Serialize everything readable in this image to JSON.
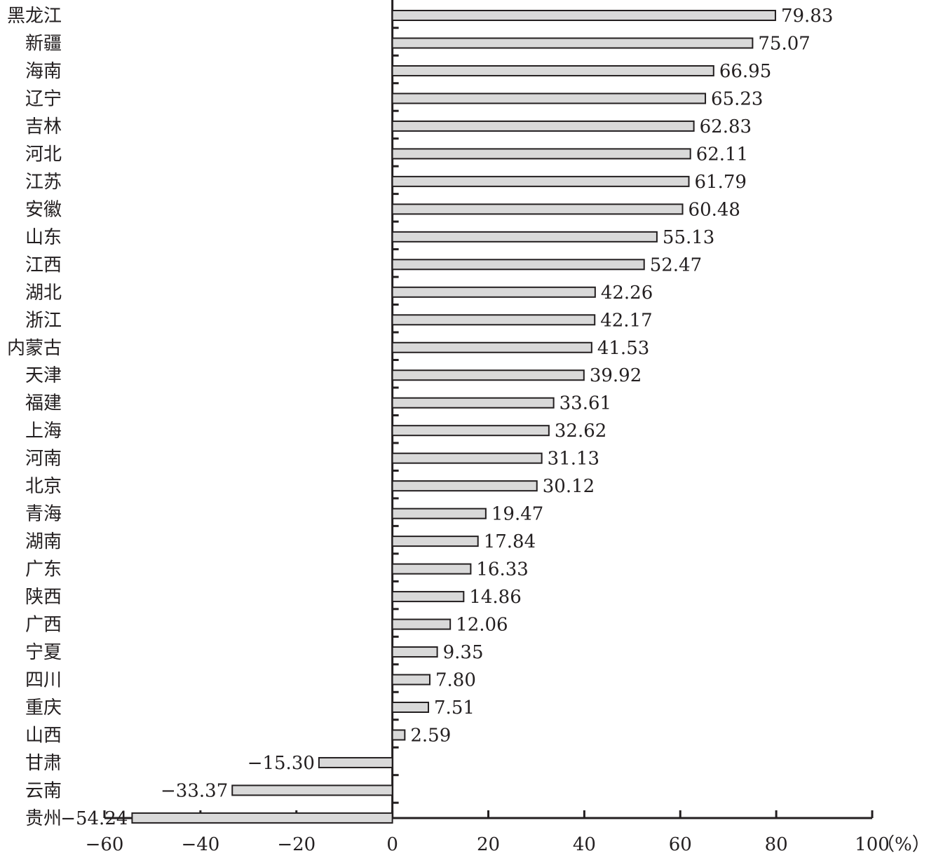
{
  "chart_data": {
    "type": "bar",
    "orientation": "horizontal",
    "title": "",
    "xlabel": "",
    "ylabel": "",
    "unit": "（%）",
    "xlim": [
      -60,
      100
    ],
    "xticks": [
      -60,
      -40,
      -20,
      0,
      20,
      40,
      60,
      80,
      100
    ],
    "xtick_labels": [
      "−60",
      "−40",
      "−20",
      "0",
      "20",
      "40",
      "60",
      "80",
      "100"
    ],
    "categories": [
      "黑龙江",
      "新疆",
      "海南",
      "辽宁",
      "吉林",
      "河北",
      "江苏",
      "安徽",
      "山东",
      "江西",
      "湖北",
      "浙江",
      "内蒙古",
      "天津",
      "福建",
      "上海",
      "河南",
      "北京",
      "青海",
      "湖南",
      "广东",
      "陕西",
      "广西",
      "宁夏",
      "四川",
      "重庆",
      "山西",
      "甘肃",
      "云南",
      "贵州"
    ],
    "values": [
      79.83,
      75.07,
      66.95,
      65.23,
      62.83,
      62.11,
      61.79,
      60.48,
      55.13,
      52.47,
      42.26,
      42.17,
      41.53,
      39.92,
      33.61,
      32.62,
      31.13,
      30.12,
      19.47,
      17.84,
      16.33,
      14.86,
      12.06,
      9.35,
      7.8,
      7.51,
      2.59,
      -15.3,
      -33.37,
      -54.24
    ],
    "value_labels": [
      "79.83",
      "75.07",
      "66.95",
      "65.23",
      "62.83",
      "62.11",
      "61.79",
      "60.48",
      "55.13",
      "52.47",
      "42.26",
      "42.17",
      "41.53",
      "39.92",
      "33.61",
      "32.62",
      "31.13",
      "30.12",
      "19.47",
      "17.84",
      "16.33",
      "14.86",
      "12.06",
      "9.35",
      "7.80",
      "7.51",
      "2.59",
      "−15.30",
      "−33.37",
      "−54.24"
    ],
    "grid": false,
    "legend": "none",
    "bar_color": "#d9d9d9",
    "bar_edge_color": "#231f20",
    "axis_color": "#231f20"
  }
}
